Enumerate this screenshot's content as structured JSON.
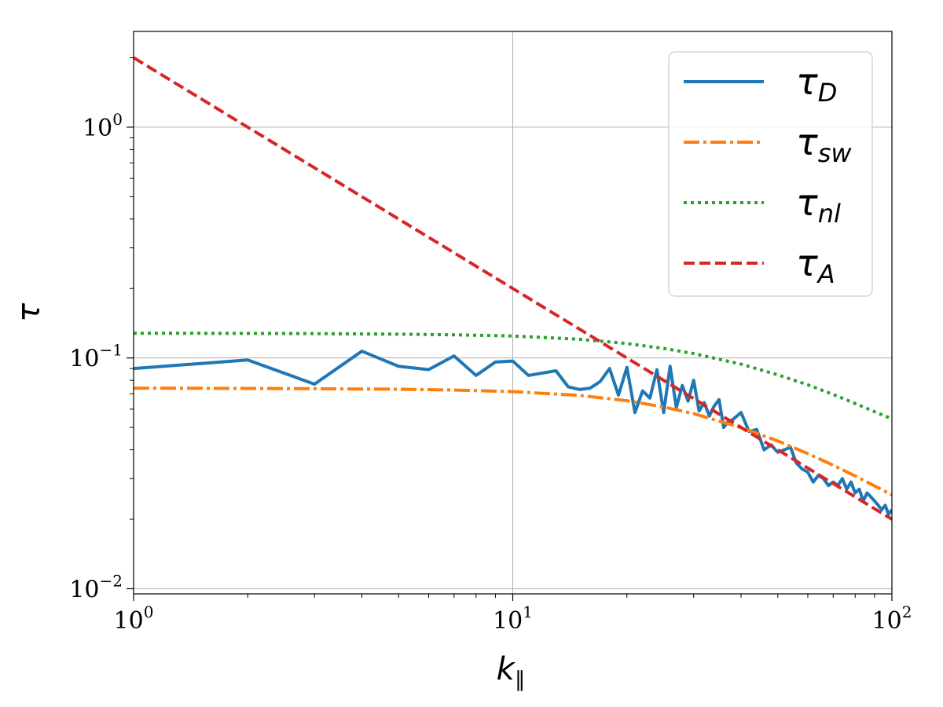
{
  "chart_data": {
    "type": "line",
    "x_scale": "log",
    "y_scale": "log",
    "xlim": [
      1,
      100
    ],
    "ylim": [
      0.0095,
      2.6
    ],
    "xlabel": "k",
    "xlabel_sub": "∥",
    "ylabel": "τ",
    "grid": true,
    "legend_position": "top-right",
    "x_ticks": [
      {
        "base": "10",
        "exp": "0",
        "value": 1
      },
      {
        "base": "10",
        "exp": "1",
        "value": 10
      },
      {
        "base": "10",
        "exp": "2",
        "value": 100
      }
    ],
    "y_ticks": [
      {
        "base": "10",
        "exp": "−2",
        "value": 0.01
      },
      {
        "base": "10",
        "exp": "−1",
        "value": 0.1
      },
      {
        "base": "10",
        "exp": "0",
        "value": 1
      }
    ],
    "series": [
      {
        "name": "τ",
        "sub": "D",
        "color": "#1f77b4",
        "dash": "solid",
        "x": [
          1,
          2,
          3,
          4,
          5,
          6,
          7,
          8,
          9,
          10,
          11,
          13,
          14,
          15,
          16,
          17,
          18,
          19,
          20,
          21,
          22,
          23,
          24,
          25,
          26,
          27,
          28,
          29,
          30,
          31,
          32,
          33,
          34,
          35,
          36,
          37,
          38,
          39,
          40,
          42,
          44,
          46,
          48,
          50,
          52,
          54,
          56,
          58,
          60,
          62,
          64,
          66,
          68,
          70,
          72,
          74,
          76,
          78,
          80,
          82,
          84,
          86,
          88,
          90,
          92,
          94,
          96,
          98,
          100
        ],
        "y": [
          0.09,
          0.098,
          0.077,
          0.107,
          0.092,
          0.089,
          0.102,
          0.084,
          0.096,
          0.097,
          0.084,
          0.088,
          0.075,
          0.073,
          0.074,
          0.079,
          0.09,
          0.069,
          0.091,
          0.058,
          0.072,
          0.067,
          0.089,
          0.058,
          0.092,
          0.061,
          0.076,
          0.065,
          0.08,
          0.059,
          0.064,
          0.056,
          0.062,
          0.066,
          0.05,
          0.053,
          0.054,
          0.056,
          0.058,
          0.048,
          0.049,
          0.04,
          0.042,
          0.039,
          0.04,
          0.041,
          0.035,
          0.033,
          0.032,
          0.029,
          0.031,
          0.03,
          0.028,
          0.029,
          0.028,
          0.03,
          0.027,
          0.029,
          0.026,
          0.027,
          0.024,
          0.026,
          0.025,
          0.024,
          0.023,
          0.022,
          0.023,
          0.021,
          0.022
        ]
      },
      {
        "name": "τ",
        "sub": "sw",
        "color": "#ff7f0e",
        "dash": "dashdot",
        "x": [
          1,
          2,
          3,
          5,
          7,
          10,
          15,
          20,
          25,
          30,
          40,
          50,
          60,
          70,
          80,
          90,
          100
        ],
        "y": [
          0.074,
          0.0738,
          0.0736,
          0.0732,
          0.0726,
          0.0715,
          0.0688,
          0.0653,
          0.0613,
          0.0574,
          0.0499,
          0.0437,
          0.0385,
          0.0343,
          0.0308,
          0.0279,
          0.0255
        ]
      },
      {
        "name": "τ",
        "sub": "nl",
        "color": "#2ca02c",
        "dash": "dotted",
        "x": [
          1,
          2,
          3,
          5,
          7,
          10,
          15,
          20,
          25,
          30,
          40,
          50,
          60,
          70,
          80,
          90,
          100
        ],
        "y": [
          0.128,
          0.1278,
          0.1275,
          0.1268,
          0.126,
          0.1245,
          0.1205,
          0.1155,
          0.11,
          0.1045,
          0.094,
          0.0845,
          0.0765,
          0.0695,
          0.0635,
          0.0585,
          0.0545
        ]
      },
      {
        "name": "τ",
        "sub": "A",
        "color": "#d62728",
        "dash": "dashed",
        "x": [
          1,
          100
        ],
        "y": [
          2.0,
          0.02
        ]
      }
    ]
  }
}
